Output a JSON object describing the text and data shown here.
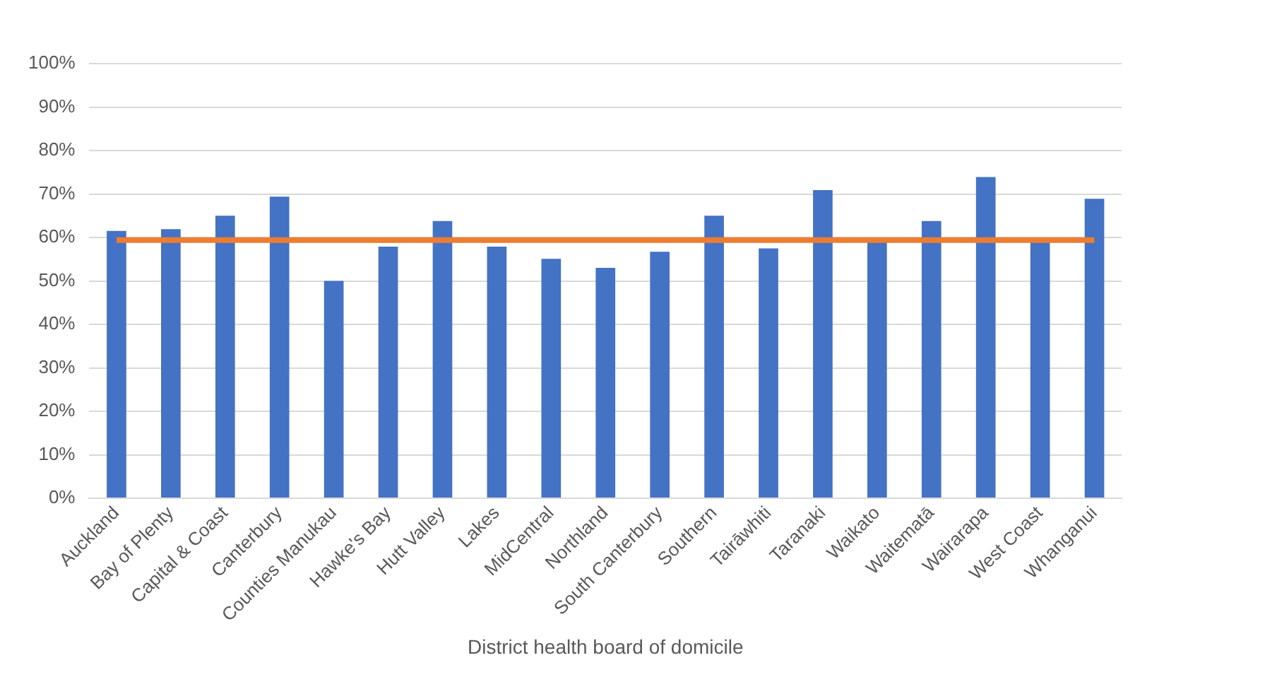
{
  "chart_data": {
    "type": "bar",
    "xlabel": "District health board of domicile",
    "categories": [
      "Auckland",
      "Bay of Plenty",
      "Capital & Coast",
      "Canterbury",
      "Counties Manukau",
      "Hawke's Bay",
      "Hutt Valley",
      "Lakes",
      "MidCentral",
      "Northland",
      "South Canterbury",
      "Southern",
      "Tairāwhiti",
      "Taranaki",
      "Waikato",
      "Waitematā",
      "Wairarapa",
      "West Coast",
      "Whanganui"
    ],
    "series": [
      {
        "color": "#4472c4",
        "values": [
          61.5,
          61.9,
          65,
          69.4,
          50,
          57.9,
          63.8,
          57.9,
          55.1,
          53,
          56.7,
          65,
          57.5,
          70.9,
          59,
          63.8,
          73.9,
          59,
          68.9
        ]
      },
      {
        "type": "line",
        "color": "#ed7d31",
        "values": [
          59.4,
          59.4,
          59.4,
          59.4,
          59.4,
          59.4,
          59.4,
          59.4,
          59.4,
          59.4,
          59.4,
          59.4,
          59.4,
          59.4,
          59.4,
          59.4,
          59.4,
          59.4,
          59.4
        ]
      }
    ],
    "ylim": [
      0,
      100
    ],
    "yticks": [
      {
        "value": 0,
        "label": "0%"
      },
      {
        "value": 10,
        "label": "10%"
      },
      {
        "value": 20,
        "label": "20%"
      },
      {
        "value": 30,
        "label": "30%"
      },
      {
        "value": 40,
        "label": "40%"
      },
      {
        "value": 50,
        "label": "50%"
      },
      {
        "value": 60,
        "label": "60%"
      },
      {
        "value": 70,
        "label": "70%"
      },
      {
        "value": 80,
        "label": "80%"
      },
      {
        "value": 90,
        "label": "90%"
      },
      {
        "value": 100,
        "label": "100%"
      }
    ],
    "grid": "y",
    "legend": false,
    "marker": "none"
  }
}
